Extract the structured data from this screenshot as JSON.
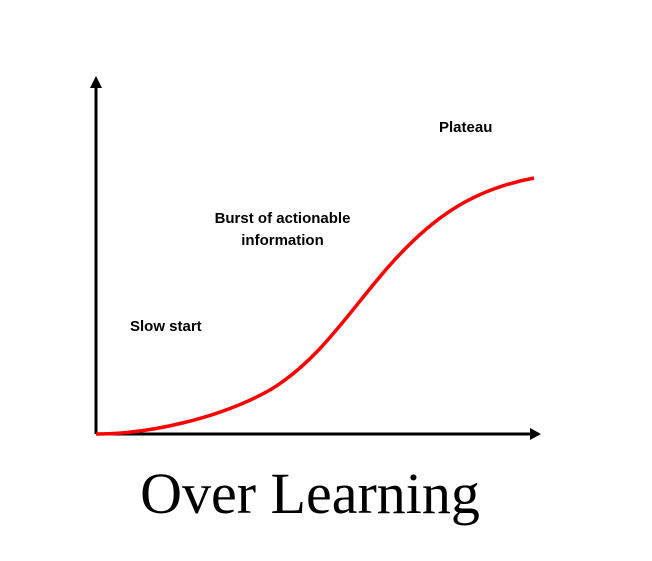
{
  "annotations": {
    "slow_start": "Slow start",
    "burst_line1": "Burst of actionable",
    "burst_line2": "information",
    "plateau": "Plateau"
  },
  "title": "Over Learning",
  "colors": {
    "curve": "#ff0000",
    "axes": "#000000"
  }
}
